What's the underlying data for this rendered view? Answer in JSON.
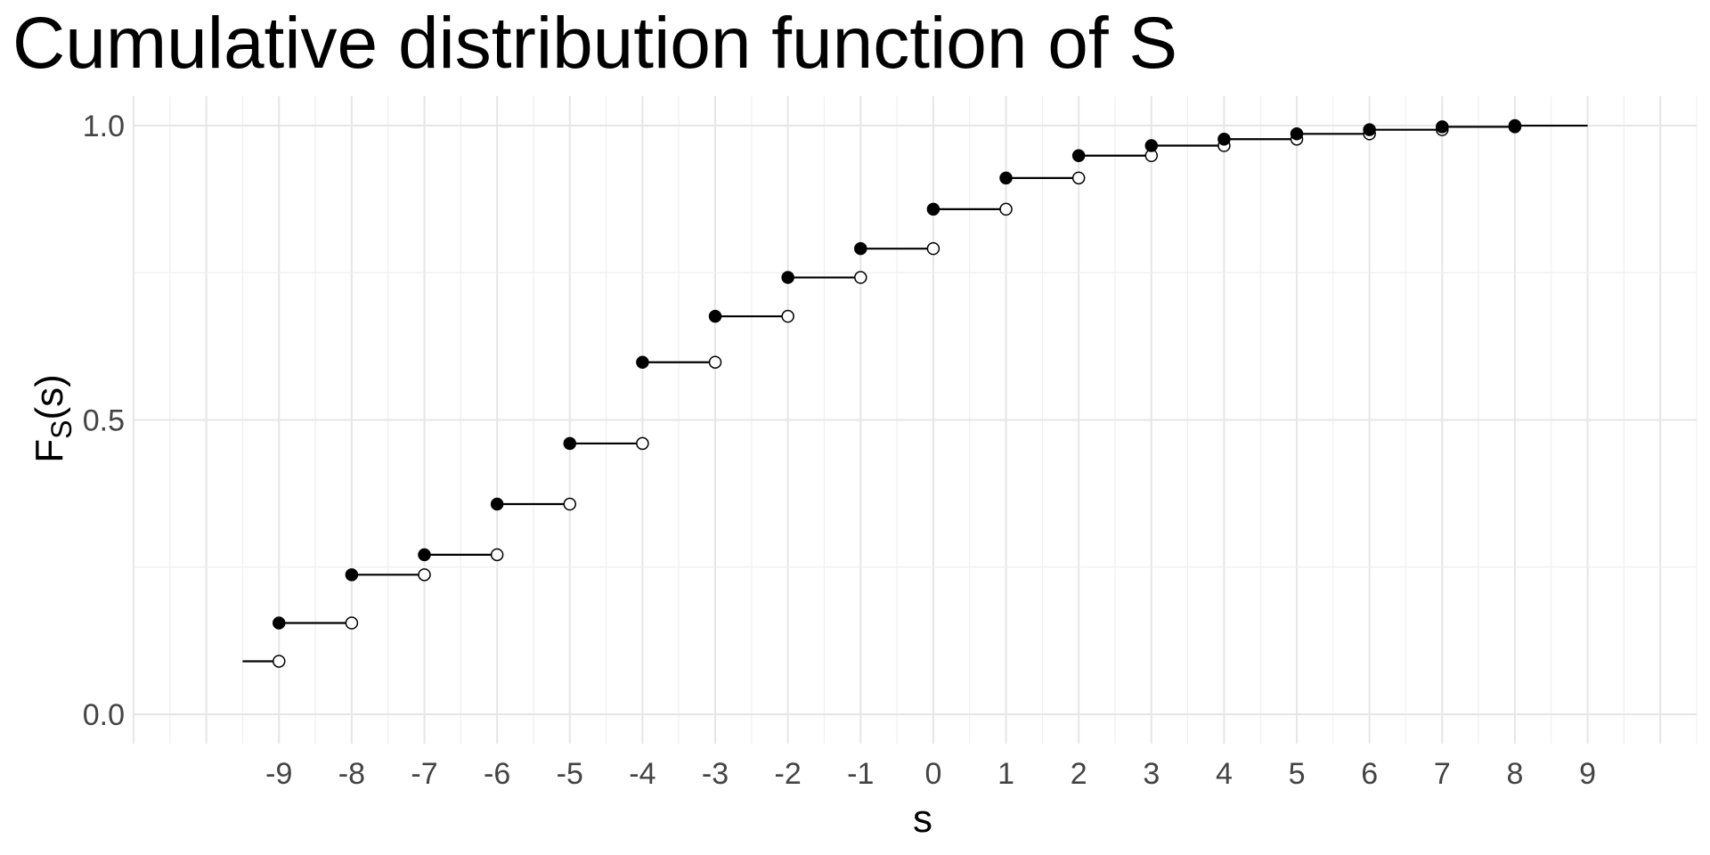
{
  "chart_data": {
    "type": "line",
    "title": "Cumulative distribution function of S",
    "xlabel": "s",
    "ylabel_main": "F",
    "ylabel_sub": "S",
    "ylabel_arg": "(s)",
    "x_ticks": [
      "-9",
      "-8",
      "-7",
      "-6",
      "-5",
      "-4",
      "-3",
      "-2",
      "-1",
      "0",
      "1",
      "2",
      "3",
      "4",
      "5",
      "6",
      "7",
      "8",
      "9"
    ],
    "y_ticks": [
      "0.0",
      "0.5",
      "1.0"
    ],
    "xlim": [
      -11,
      10.5
    ],
    "ylim": [
      -0.05,
      1.05
    ],
    "grid": true,
    "step_start_x": -11,
    "step_end_x": 9,
    "x": [
      -9,
      -8,
      -7,
      -6,
      -5,
      -4,
      -3,
      -2,
      -1,
      0,
      1,
      2,
      3,
      4,
      5,
      6,
      7,
      8
    ],
    "y": [
      0.155,
      0.237,
      0.271,
      0.357,
      0.46,
      0.598,
      0.676,
      0.742,
      0.791,
      0.858,
      0.911,
      0.949,
      0.966,
      0.977,
      0.986,
      0.993,
      0.998,
      1.0
    ],
    "y_initial": 0.09
  }
}
